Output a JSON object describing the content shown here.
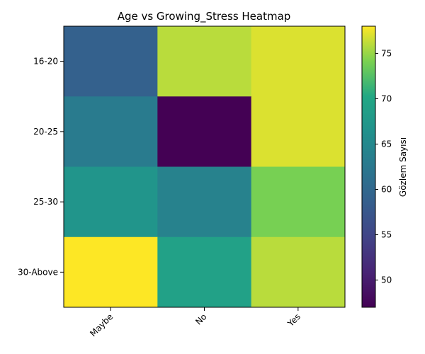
{
  "chart_data": {
    "type": "heatmap",
    "title": "Age vs Growing_Stress Heatmap",
    "xlabel": "",
    "ylabel": "",
    "x_categories": [
      "Maybe",
      "No",
      "Yes"
    ],
    "y_categories": [
      "16-20",
      "20-25",
      "25-30",
      "30-Above"
    ],
    "values": [
      [
        59,
        76,
        77
      ],
      [
        63,
        47,
        77
      ],
      [
        67,
        64,
        74
      ],
      [
        78,
        69,
        76
      ]
    ],
    "colorbar": {
      "label": "Gözlem Sayısı",
      "vmin": 47,
      "vmax": 78,
      "ticks": [
        50,
        55,
        60,
        65,
        70,
        75
      ],
      "colormap": "viridis"
    },
    "grid": false,
    "legend": "colorbar-right"
  }
}
